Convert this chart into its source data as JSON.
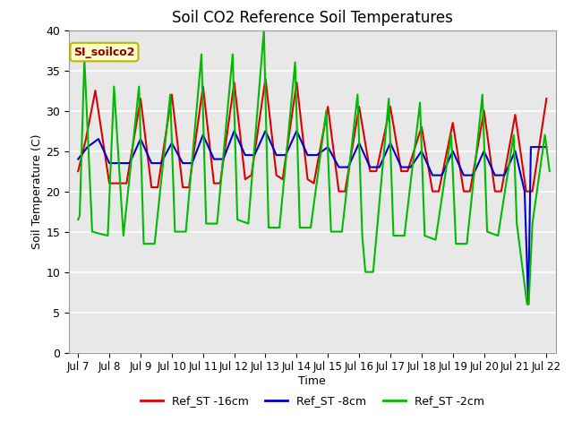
{
  "title": "Soil CO2 Reference Soil Temperatures",
  "xlabel": "Time",
  "ylabel": "Soil Temperature (C)",
  "ylim": [
    0,
    40
  ],
  "background_color": "#e8e8e8",
  "grid_color": "#ffffff",
  "tick_labels": [
    "Jul 7",
    "Jul 8",
    "Jul 9",
    "Jul 10",
    "Jul 11",
    "Jul 12",
    "Jul 13",
    "Jul 14",
    "Jul 15",
    "Jul 16",
    "Jul 17",
    "Jul 18",
    "Jul 19",
    "Jul 20",
    "Jul 21",
    "Jul 22"
  ],
  "legend_label": "SI_soilco2",
  "legend_label_color": "#8b0000",
  "legend_box_color": "#ffffcc",
  "legend_box_edge": "#b8b800",
  "red_label": "Ref_ST -16cm",
  "blue_label": "Ref_ST -8cm",
  "green_label": "Ref_ST -2cm",
  "red_color": "#dd0000",
  "blue_color": "#0000cc",
  "green_color": "#00bb00",
  "red_x": [
    0.0,
    0.25,
    0.55,
    1.0,
    1.35,
    1.55,
    2.0,
    2.35,
    2.55,
    3.0,
    3.35,
    3.55,
    4.0,
    4.35,
    4.55,
    5.0,
    5.35,
    5.55,
    6.0,
    6.35,
    6.55,
    7.0,
    7.35,
    7.55,
    8.0,
    8.35,
    8.55,
    9.0,
    9.35,
    9.55,
    10.0,
    10.35,
    10.55,
    11.0,
    11.35,
    11.55,
    12.0,
    12.35,
    12.55,
    13.0,
    13.35,
    13.55,
    14.0,
    14.35,
    14.55,
    15.0
  ],
  "red_y": [
    22.5,
    26.5,
    32.5,
    21.0,
    21.0,
    21.0,
    31.5,
    20.5,
    20.5,
    32.0,
    20.5,
    20.5,
    33.0,
    21.0,
    21.0,
    33.5,
    21.5,
    22.0,
    34.0,
    22.0,
    21.5,
    33.5,
    21.5,
    21.0,
    30.5,
    20.0,
    20.0,
    30.5,
    22.5,
    22.5,
    30.5,
    22.5,
    22.5,
    28.0,
    20.0,
    20.0,
    28.5,
    20.0,
    20.0,
    30.0,
    20.0,
    20.0,
    29.5,
    20.0,
    20.0,
    31.5
  ],
  "blue_x": [
    0.0,
    0.3,
    0.65,
    1.0,
    1.35,
    1.65,
    2.0,
    2.35,
    2.65,
    3.0,
    3.35,
    3.65,
    4.0,
    4.35,
    4.65,
    5.0,
    5.35,
    5.65,
    6.0,
    6.35,
    6.65,
    7.0,
    7.35,
    7.65,
    8.0,
    8.35,
    8.65,
    9.0,
    9.35,
    9.65,
    10.0,
    10.35,
    10.65,
    11.0,
    11.35,
    11.65,
    12.0,
    12.35,
    12.65,
    13.0,
    13.35,
    13.65,
    14.0,
    14.3,
    14.42,
    14.5,
    15.0
  ],
  "blue_y": [
    24.0,
    25.5,
    26.5,
    23.5,
    23.5,
    23.5,
    26.5,
    23.5,
    23.5,
    26.0,
    23.5,
    23.5,
    27.0,
    24.0,
    24.0,
    27.5,
    24.5,
    24.5,
    27.5,
    24.5,
    24.5,
    27.5,
    24.5,
    24.5,
    25.5,
    23.0,
    23.0,
    26.0,
    23.0,
    23.0,
    26.0,
    23.0,
    23.0,
    25.0,
    22.0,
    22.0,
    25.0,
    22.0,
    22.0,
    25.0,
    22.0,
    22.0,
    25.0,
    20.0,
    6.0,
    25.5,
    25.5
  ],
  "green_x": [
    0.0,
    0.05,
    0.2,
    0.45,
    0.95,
    1.15,
    1.45,
    1.95,
    2.1,
    2.45,
    2.95,
    3.1,
    3.45,
    3.95,
    4.1,
    4.45,
    4.95,
    5.1,
    5.45,
    5.95,
    6.1,
    6.45,
    6.95,
    7.1,
    7.45,
    7.95,
    8.1,
    8.45,
    8.95,
    9.1,
    9.2,
    9.45,
    9.95,
    10.1,
    10.45,
    10.95,
    11.1,
    11.45,
    11.95,
    12.1,
    12.45,
    12.95,
    13.1,
    13.45,
    13.95,
    14.05,
    14.38,
    14.43,
    14.55,
    14.95,
    15.1
  ],
  "green_y": [
    16.5,
    17.0,
    36.5,
    15.0,
    14.5,
    33.0,
    14.5,
    33.0,
    13.5,
    13.5,
    32.0,
    15.0,
    15.0,
    37.0,
    16.0,
    16.0,
    37.0,
    16.5,
    16.0,
    40.0,
    15.5,
    15.5,
    36.0,
    15.5,
    15.5,
    30.0,
    15.0,
    15.0,
    32.0,
    14.5,
    10.0,
    10.0,
    31.5,
    14.5,
    14.5,
    31.0,
    14.5,
    14.0,
    27.0,
    13.5,
    13.5,
    32.0,
    15.0,
    14.5,
    27.0,
    16.0,
    6.0,
    6.0,
    16.0,
    27.0,
    22.5
  ]
}
